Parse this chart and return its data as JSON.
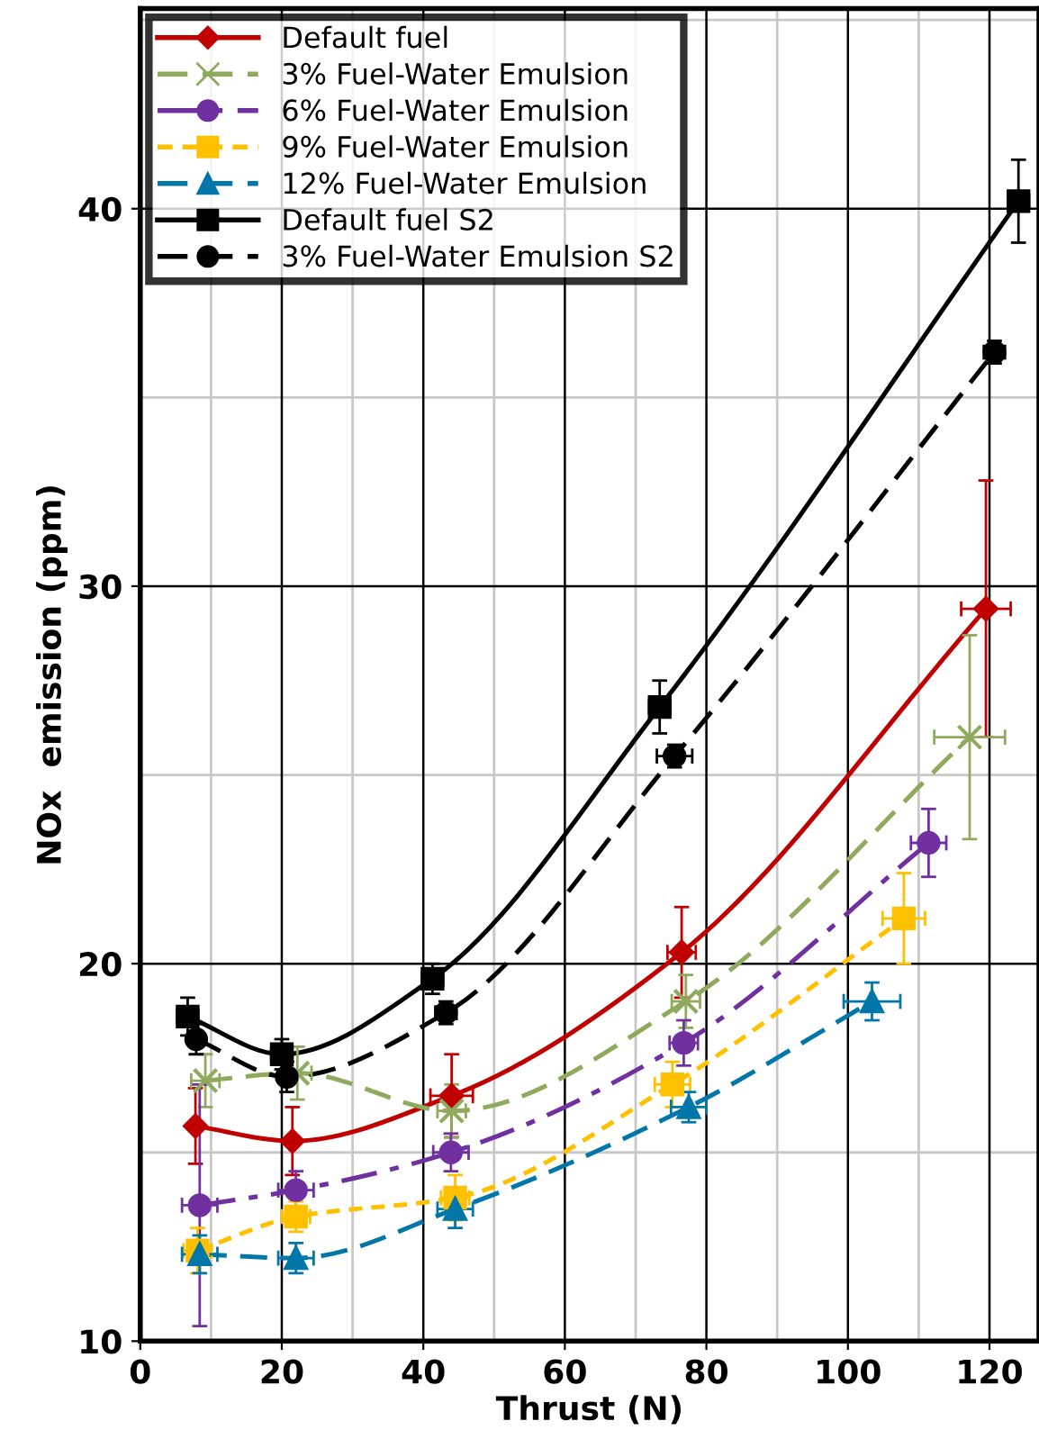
{
  "chart_data": {
    "type": "line",
    "xlabel": "Thrust (N)",
    "ylabel": "NOx  emission (ppm)",
    "xlim": [
      0,
      127
    ],
    "ylim": [
      10,
      45.3
    ],
    "xticks": [
      0,
      20,
      40,
      60,
      80,
      100,
      120
    ],
    "yticks": [
      10,
      20,
      30,
      40
    ],
    "grid": true,
    "legend": "top left",
    "series": [
      {
        "name": "Default fuel",
        "color": "#c00000",
        "marker": "diamond",
        "line_style": "solid",
        "x": [
          7.8,
          21.5,
          44.0,
          76.5,
          119.5
        ],
        "values": [
          15.7,
          15.3,
          16.5,
          20.3,
          29.4
        ],
        "errors": [
          1.0,
          0.9,
          1.1,
          1.2,
          3.4
        ],
        "xerrors": [
          null,
          null,
          3,
          2,
          3.5
        ]
      },
      {
        "name": "3% Fuel-Water Emulsion",
        "color": "#8faa5c",
        "marker": "cross",
        "line_style": "dashed",
        "x": [
          9.2,
          22.2,
          44.0,
          77.1,
          117.2
        ],
        "values": [
          16.9,
          17.1,
          16.1,
          19.0,
          26.0
        ],
        "errors": [
          0.7,
          0.7,
          0.7,
          0.7,
          2.7
        ],
        "xerrors": [
          2,
          2,
          2,
          2,
          5
        ]
      },
      {
        "name": "6% Fuel-Water Emulsion",
        "color": "#7030a0",
        "marker": "circle",
        "line_style": "dashdot",
        "x": [
          8.4,
          22.0,
          43.9,
          76.8,
          111.4
        ],
        "values": [
          13.6,
          14.0,
          15.0,
          17.9,
          23.2
        ],
        "errors": [
          3.2,
          0.5,
          0.5,
          0.6,
          0.9
        ],
        "xerrors": [
          2.5,
          2.5,
          2.5,
          2,
          2.5
        ]
      },
      {
        "name": "9% Fuel-Water Emulsion",
        "color": "#ffc000",
        "marker": "square",
        "line_style": "dotted",
        "x": [
          8.1,
          22.0,
          44.5,
          75.2,
          107.9
        ],
        "values": [
          12.4,
          13.3,
          13.8,
          16.8,
          21.2
        ],
        "errors": [
          0.6,
          0.4,
          0.6,
          0.6,
          1.2
        ],
        "xerrors": [
          2,
          2,
          2,
          2.5,
          3
        ]
      },
      {
        "name": "12% Fuel-Water Emulsion",
        "color": "#0077a8",
        "marker": "triangle",
        "line_style": "dashed",
        "x": [
          8.4,
          22.0,
          44.5,
          77.5,
          103.4
        ],
        "values": [
          12.3,
          12.2,
          13.5,
          16.2,
          19.0
        ],
        "errors": [
          0.5,
          0.4,
          0.5,
          0.4,
          0.5
        ],
        "xerrors": [
          2.5,
          2.5,
          2.5,
          2.5,
          4
        ]
      },
      {
        "name": "Default fuel S2",
        "color": "#000000",
        "marker": "square",
        "line_style": "solid",
        "x": [
          6.7,
          20.0,
          41.3,
          73.4,
          124.1
        ],
        "values": [
          18.6,
          17.6,
          19.6,
          26.8,
          40.2
        ],
        "errors": [
          0.5,
          0.4,
          0.4,
          0.7,
          1.1
        ],
        "xerrors": [
          1.5,
          1.5,
          1.5,
          1.5,
          1.5
        ]
      },
      {
        "name": "3% Fuel-Water Emulsion S2",
        "color": "#000000",
        "marker": "circle",
        "line_style": "dashed",
        "x": [
          7.9,
          20.7,
          43.2,
          75.5,
          120.7
        ],
        "values": [
          18.0,
          17.0,
          18.7,
          25.5,
          36.2
        ],
        "errors": [
          0.4,
          0.4,
          0.3,
          0.3,
          0.3
        ],
        "xerrors": [
          1,
          1,
          1.5,
          2.5,
          1.5
        ]
      }
    ]
  }
}
